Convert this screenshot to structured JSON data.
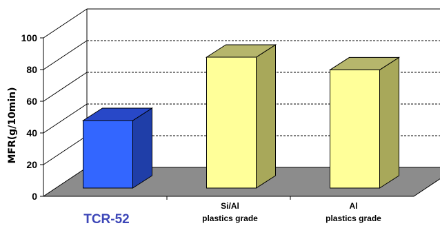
{
  "chart_data": {
    "type": "bar",
    "style": "3d-column",
    "title": "",
    "xlabel": "",
    "ylabel": "MFR(g/10min)",
    "ylim": [
      0,
      100
    ],
    "yticks": [
      "0",
      "20",
      "40",
      "60",
      "80",
      "100"
    ],
    "grid": "dashed horizontal",
    "categories": [
      {
        "lines": [
          "TCR-52"
        ],
        "highlight": true
      },
      {
        "lines": [
          "Si/Al",
          "plastics grade"
        ],
        "highlight": false
      },
      {
        "lines": [
          "Al",
          "plastics grade"
        ],
        "highlight": false
      }
    ],
    "values": [
      40,
      80,
      72
    ],
    "colors": {
      "highlight_front": "#3366ff",
      "highlight_side": "#1f3ea8",
      "highlight_top": "#2848c8",
      "highlight_label": "#3d47b8",
      "bar_front": "#ffff99",
      "bar_side": "#a8a85a",
      "bar_top": "#b6b66c",
      "floor": "#8c8c8c",
      "grid": "#000000"
    }
  }
}
